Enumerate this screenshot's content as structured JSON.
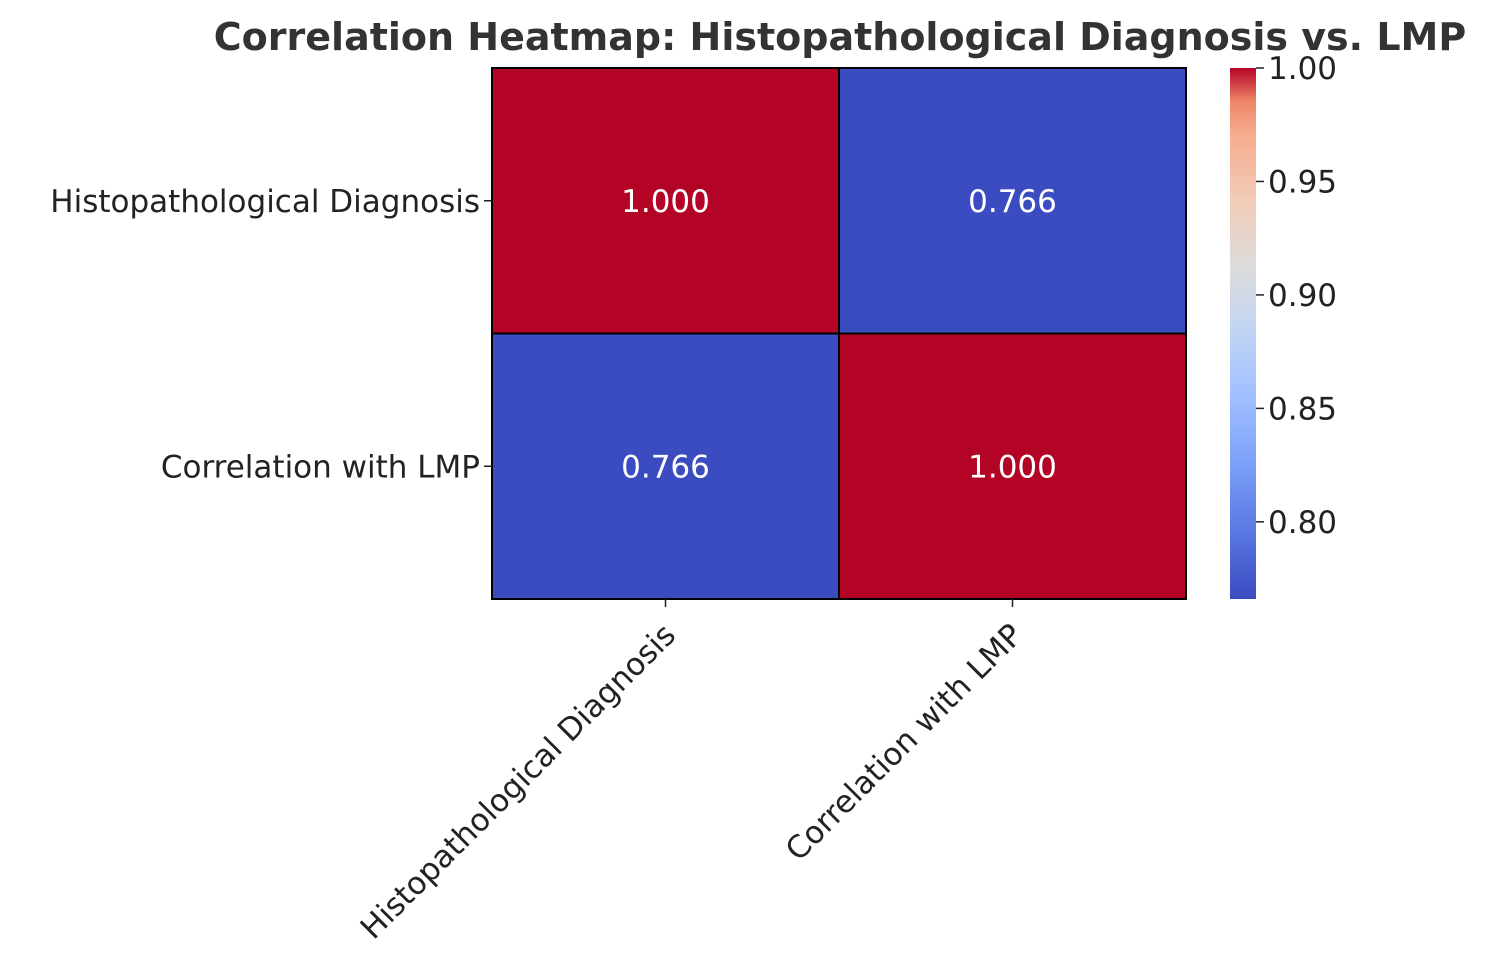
{
  "chart_data": {
    "type": "heatmap",
    "title": "Correlation Heatmap: Histopathological Diagnosis vs. LMP",
    "rows": [
      "Histopathological Diagnosis",
      "Correlation with LMP"
    ],
    "columns": [
      "Histopathological Diagnosis",
      "Correlation with LMP"
    ],
    "values": [
      [
        1.0,
        0.766
      ],
      [
        0.766,
        1.0
      ]
    ],
    "value_labels": [
      [
        "1.000",
        "0.766"
      ],
      [
        "0.766",
        "1.000"
      ]
    ],
    "colormap": "coolwarm",
    "color_min": "#3b4cc0",
    "color_max": "#b40426",
    "vmin": 0.766,
    "vmax": 1.0,
    "colorbar_ticks": [
      0.8,
      0.85,
      0.9,
      0.95,
      1.0
    ],
    "colorbar_tick_labels": [
      "0.80",
      "0.85",
      "0.90",
      "0.95",
      "1.00"
    ],
    "cell_border_color": "#000000",
    "cell_text_color": "#ffffff",
    "xtick_rotation": "45 degrees",
    "legend": "colorbar-right"
  }
}
